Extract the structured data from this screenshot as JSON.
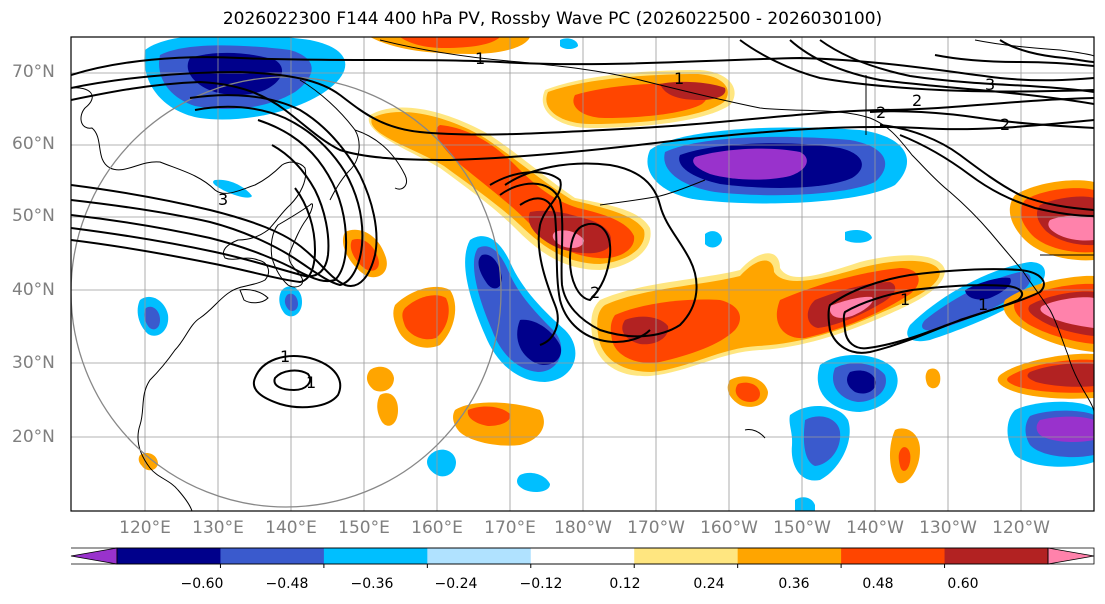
{
  "title": "2026022300 F144 400 hPa PV, Rossby Wave PC (2026022500 - 2026030100)",
  "lat_labels": [
    "70°N",
    "60°N",
    "50°N",
    "40°N",
    "30°N",
    "20°N"
  ],
  "lon_labels": [
    "120°E",
    "130°E",
    "140°E",
    "150°E",
    "160°E",
    "170°E",
    "180°W",
    "170°W",
    "160°W",
    "150°W",
    "140°W",
    "130°W",
    "120°W"
  ],
  "contour_labels": [
    "1",
    "1",
    "2",
    "2",
    "2",
    "3",
    "3",
    "2",
    "1",
    "1",
    "1",
    "1"
  ],
  "colorbar": {
    "ticks": [
      "−0.60",
      "−0.48",
      "−0.36",
      "−0.24",
      "−0.12",
      "0.12",
      "0.24",
      "0.36",
      "0.48",
      "0.60"
    ],
    "colors": [
      "#9932cc",
      "#00008b",
      "#3a5acd",
      "#00bfff",
      "#b0e2ff",
      "#ffffff",
      "#ffe680",
      "#ffa500",
      "#ff4500",
      "#b22222",
      "#ff82ab"
    ]
  },
  "map_extent": {
    "lon_min": 110,
    "lon_max": 250,
    "lat_min": 10,
    "lat_max": 75
  }
}
